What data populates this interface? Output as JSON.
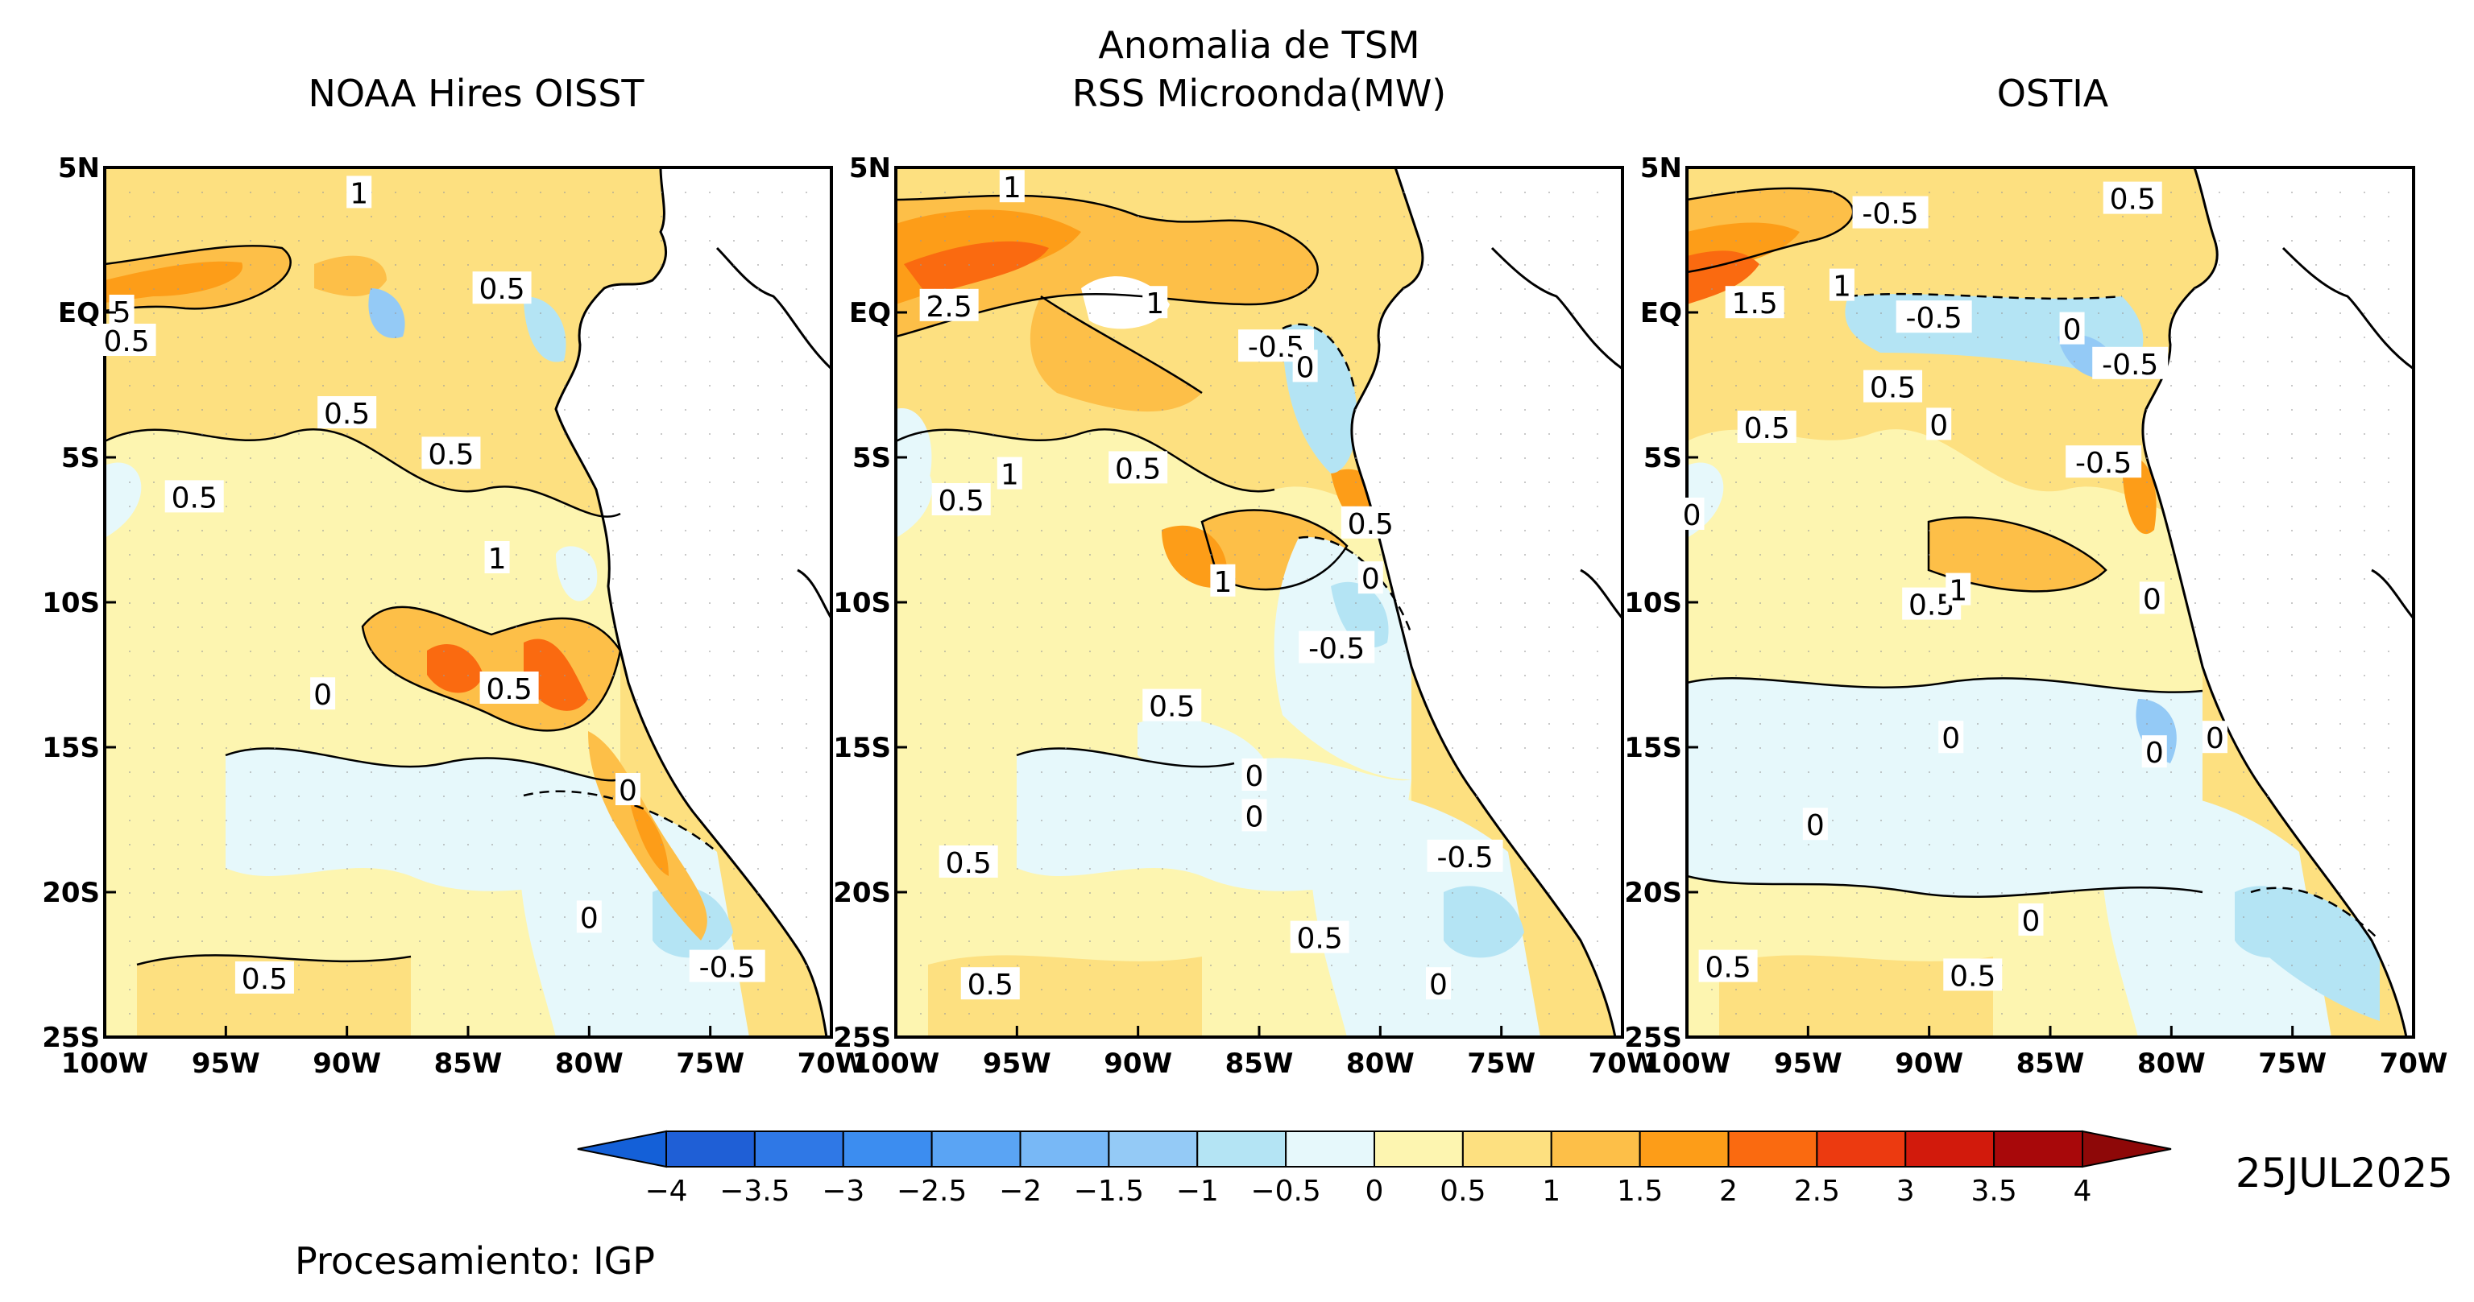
{
  "figure": {
    "suptitle_line1": "Anomalia de TSM",
    "credit": "Procesamiento: IGP",
    "date": "25JUL2025"
  },
  "panels": [
    {
      "title": "NOAA Hires OISST",
      "contour_labels": [
        {
          "text": "1",
          "lon": -89.5,
          "lat": 4.1
        },
        {
          "text": "0.5",
          "lon": -83.6,
          "lat": 0.8
        },
        {
          "text": "5",
          "lon": -99.3,
          "lat": 0.0
        },
        {
          "text": "0.5",
          "lon": -99.1,
          "lat": -1.0
        },
        {
          "text": "0.5",
          "lon": -90.0,
          "lat": -3.5
        },
        {
          "text": "0.5",
          "lon": -85.7,
          "lat": -4.9
        },
        {
          "text": "0.5",
          "lon": -96.3,
          "lat": -6.4
        },
        {
          "text": "1",
          "lon": -83.8,
          "lat": -8.5
        },
        {
          "text": "0",
          "lon": -91.0,
          "lat": -13.2
        },
        {
          "text": "0.5",
          "lon": -83.3,
          "lat": -13.0
        },
        {
          "text": "0",
          "lon": -78.4,
          "lat": -16.5
        },
        {
          "text": "0",
          "lon": -80.0,
          "lat": -20.9
        },
        {
          "text": "-0.5",
          "lon": -74.3,
          "lat": -22.6
        },
        {
          "text": "0.5",
          "lon": -93.4,
          "lat": -23.0
        }
      ]
    },
    {
      "title_line1": "RSS Microonda(MW)",
      "contour_labels": [
        {
          "text": "1",
          "lon": -95.2,
          "lat": 4.3
        },
        {
          "text": "2.5",
          "lon": -97.8,
          "lat": 0.2
        },
        {
          "text": "1",
          "lon": -89.3,
          "lat": 0.3
        },
        {
          "text": "-0.5",
          "lon": -84.3,
          "lat": -1.2
        },
        {
          "text": "0",
          "lon": -83.1,
          "lat": -1.9
        },
        {
          "text": "1",
          "lon": -95.3,
          "lat": -5.6
        },
        {
          "text": "0.5",
          "lon": -90.0,
          "lat": -5.4
        },
        {
          "text": "0.5",
          "lon": -97.3,
          "lat": -6.5
        },
        {
          "text": "0.5",
          "lon": -80.4,
          "lat": -7.3
        },
        {
          "text": "1",
          "lon": -86.5,
          "lat": -9.3
        },
        {
          "text": "0",
          "lon": -80.4,
          "lat": -9.2
        },
        {
          "text": "-0.5",
          "lon": -81.8,
          "lat": -11.6
        },
        {
          "text": "0.5",
          "lon": -88.6,
          "lat": -13.6
        },
        {
          "text": "0",
          "lon": -85.2,
          "lat": -16.0
        },
        {
          "text": "0",
          "lon": -85.2,
          "lat": -17.4
        },
        {
          "text": "-0.5",
          "lon": -76.5,
          "lat": -18.8
        },
        {
          "text": "0.5",
          "lon": -97.0,
          "lat": -19.0
        },
        {
          "text": "0.5",
          "lon": -82.5,
          "lat": -21.6
        },
        {
          "text": "0.5",
          "lon": -96.1,
          "lat": -23.2
        },
        {
          "text": "0",
          "lon": -77.6,
          "lat": -23.2
        }
      ]
    },
    {
      "title": "OSTIA",
      "contour_labels": [
        {
          "text": "-0.5",
          "lon": -91.6,
          "lat": 3.4
        },
        {
          "text": "0.5",
          "lon": -81.6,
          "lat": 3.9
        },
        {
          "text": "1.5",
          "lon": -97.2,
          "lat": 0.3
        },
        {
          "text": "1",
          "lon": -93.6,
          "lat": 0.9
        },
        {
          "text": "-0.5",
          "lon": -89.8,
          "lat": -0.2
        },
        {
          "text": "0",
          "lon": -84.1,
          "lat": -0.6
        },
        {
          "text": "-0.5",
          "lon": -81.7,
          "lat": -1.8
        },
        {
          "text": "0.5",
          "lon": -91.5,
          "lat": -2.6
        },
        {
          "text": "0.5",
          "lon": -96.7,
          "lat": -4.0
        },
        {
          "text": "0",
          "lon": -89.6,
          "lat": -3.9
        },
        {
          "text": "-0.5",
          "lon": -82.8,
          "lat": -5.2
        },
        {
          "text": "0",
          "lon": -99.8,
          "lat": -7.0
        },
        {
          "text": "0.5",
          "lon": -89.9,
          "lat": -10.1
        },
        {
          "text": "1",
          "lon": -88.8,
          "lat": -9.6
        },
        {
          "text": "0",
          "lon": -80.8,
          "lat": -9.9
        },
        {
          "text": "0",
          "lon": -89.1,
          "lat": -14.7
        },
        {
          "text": "0",
          "lon": -78.2,
          "lat": -14.7
        },
        {
          "text": "0",
          "lon": -80.7,
          "lat": -15.2
        },
        {
          "text": "0",
          "lon": -94.7,
          "lat": -17.7
        },
        {
          "text": "0",
          "lon": -85.8,
          "lat": -21.0
        },
        {
          "text": "0.5",
          "lon": -98.3,
          "lat": -22.6
        },
        {
          "text": "0.5",
          "lon": -88.2,
          "lat": -22.9
        }
      ]
    }
  ],
  "map": {
    "lon_range": [
      -100,
      -70
    ],
    "lat_range": [
      -25,
      5
    ],
    "lon_ticks": [
      -100,
      -95,
      -90,
      -85,
      -80,
      -75,
      -70
    ],
    "lat_ticks": [
      5,
      0,
      -5,
      -10,
      -15,
      -20,
      -25
    ],
    "lon_tick_labels": [
      "100W",
      "95W",
      "90W",
      "85W",
      "80W",
      "75W",
      "70W"
    ],
    "lat_tick_labels": [
      "5N",
      "EQ",
      "5S",
      "10S",
      "15S",
      "20S",
      "25S"
    ]
  },
  "colorbar": {
    "boundaries": [
      -4,
      -3.5,
      -3,
      -2.5,
      -2,
      -1.5,
      -1,
      -0.5,
      0,
      0.5,
      1,
      1.5,
      2,
      2.5,
      3,
      3.5,
      4
    ],
    "labels": [
      "−4",
      "−3.5",
      "−3",
      "−2.5",
      "−2",
      "−1.5",
      "−1",
      "−0.5",
      "0",
      "0.5",
      "1",
      "1.5",
      "2",
      "2.5",
      "3",
      "3.5",
      "4"
    ],
    "colors": [
      "#1f5fd6",
      "#2f78e6",
      "#3c8df0",
      "#5aa4f4",
      "#78b8f6",
      "#94caf6",
      "#b4e4f4",
      "#e6f8fb",
      "#fdf5b0",
      "#fde080",
      "#fdbf48",
      "#fd9d18",
      "#fa6a10",
      "#ec3a10",
      "#d21a0c",
      "#a8080a"
    ],
    "lower_extend_color": "#1460d8",
    "upper_extend_color": "#8e0808"
  }
}
